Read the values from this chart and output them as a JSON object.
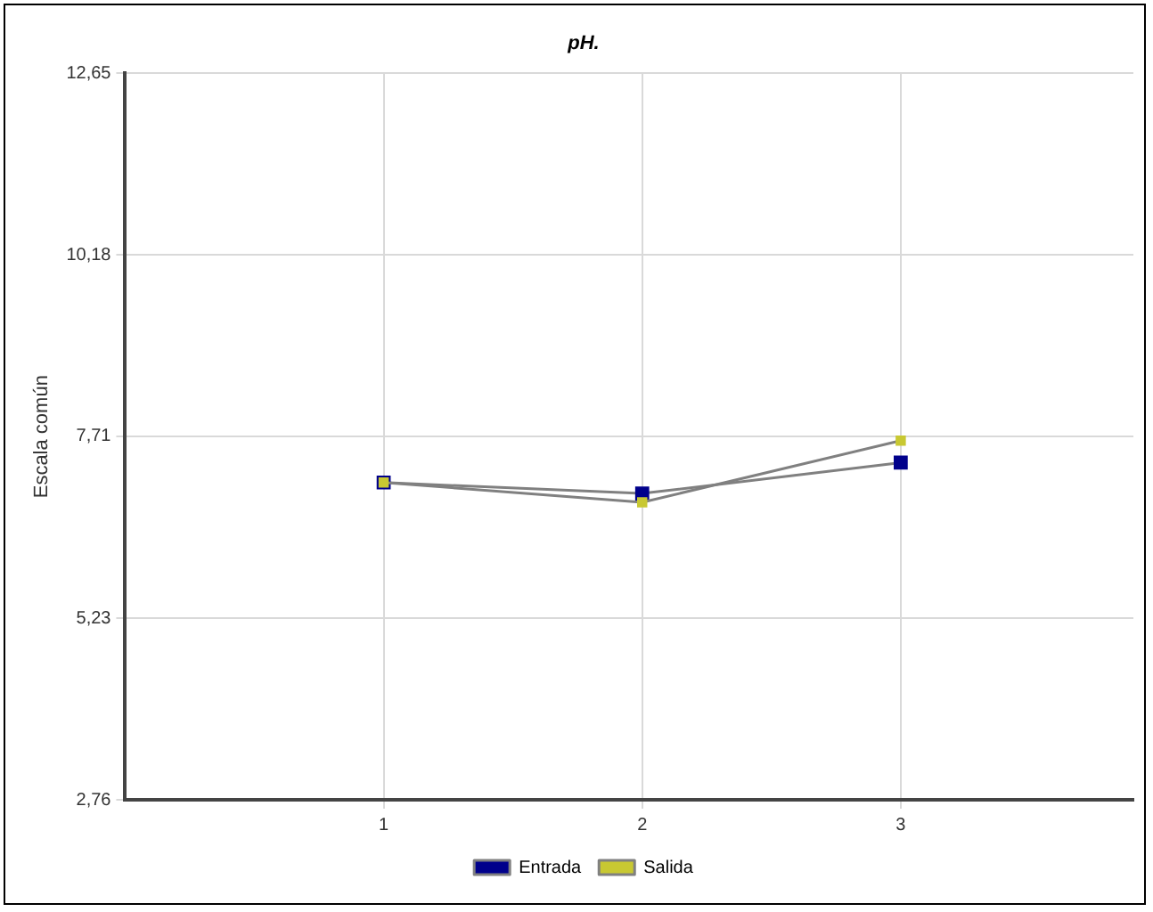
{
  "chart_data": {
    "type": "line",
    "title": "pH.",
    "ylabel": "Escala común",
    "x": [
      1,
      2,
      3
    ],
    "series": [
      {
        "name": "Entrada",
        "color": "#00008b",
        "values": [
          7.08,
          6.93,
          7.35
        ]
      },
      {
        "name": "Salida",
        "color": "#c8c832",
        "values": [
          7.08,
          6.81,
          7.65
        ]
      }
    ],
    "xlim": [
      0,
      3.9
    ],
    "xticks": [
      1,
      2,
      3
    ],
    "ylim": [
      2.76,
      12.65
    ],
    "yticks": [
      {
        "value": 2.76,
        "label": "2,76"
      },
      {
        "value": 5.23,
        "label": "5,23"
      },
      {
        "value": 7.71,
        "label": "7,71"
      },
      {
        "value": 10.18,
        "label": "10,18"
      },
      {
        "value": 12.65,
        "label": "12,65"
      }
    ],
    "grid": true,
    "legend": "bottom",
    "marker": "square",
    "line_style": "solid"
  }
}
